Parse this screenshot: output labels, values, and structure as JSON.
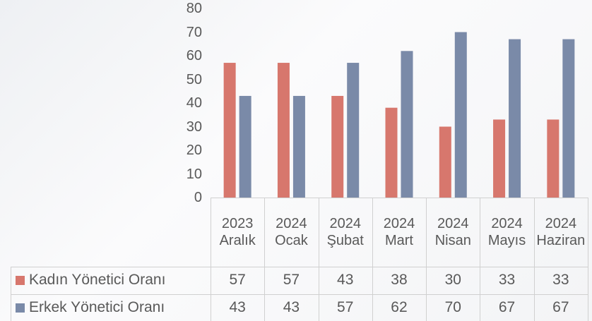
{
  "chart_data": {
    "type": "bar",
    "categories": [
      "2023 Aralık",
      "2024 Ocak",
      "2024 Şubat",
      "2024 Mart",
      "2024 Nisan",
      "2024 Mayıs",
      "2024 Haziran"
    ],
    "series": [
      {
        "name": "Kadın Yönetici Oranı",
        "color": "#d7776d",
        "values": [
          57,
          57,
          43,
          38,
          30,
          33,
          33
        ]
      },
      {
        "name": "Erkek Yönetici Oranı",
        "color": "#7a8aa8",
        "values": [
          43,
          43,
          57,
          62,
          70,
          67,
          67
        ]
      }
    ],
    "ylim": [
      0,
      80
    ],
    "yticks": [
      0,
      10,
      20,
      30,
      40,
      50,
      60,
      70,
      80
    ],
    "grid": false,
    "legend": "table"
  }
}
